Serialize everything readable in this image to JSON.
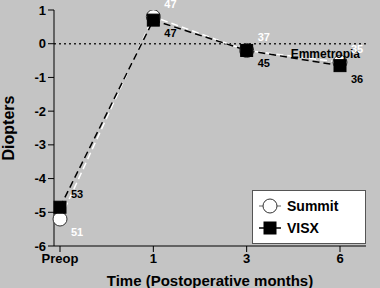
{
  "chart_data": {
    "type": "line",
    "x_label": "Time (Postoperative months)",
    "y_label": "Diopters",
    "categories": [
      "Preop",
      "1",
      "3",
      "6"
    ],
    "series": [
      {
        "name": "Summit",
        "color": "#ffffff",
        "marker": "circle",
        "line_style": "dashed",
        "values": [
          -5.2,
          0.8,
          -0.2,
          -0.55
        ],
        "sample_sizes": [
          51,
          47,
          37,
          35
        ]
      },
      {
        "name": "VISX",
        "color": "#000000",
        "marker": "square",
        "line_style": "dashed",
        "values": [
          -4.85,
          0.7,
          -0.2,
          -0.65
        ],
        "sample_sizes": [
          53,
          47,
          45,
          36
        ]
      }
    ],
    "ylim": [
      -6,
      1
    ],
    "yticks": [
      -6,
      -5,
      -4,
      -3,
      -2,
      -1,
      0,
      1
    ],
    "annotations": [
      {
        "text": "Emmetropia",
        "y": 0
      }
    ],
    "legend": "lower right",
    "grid": false
  }
}
